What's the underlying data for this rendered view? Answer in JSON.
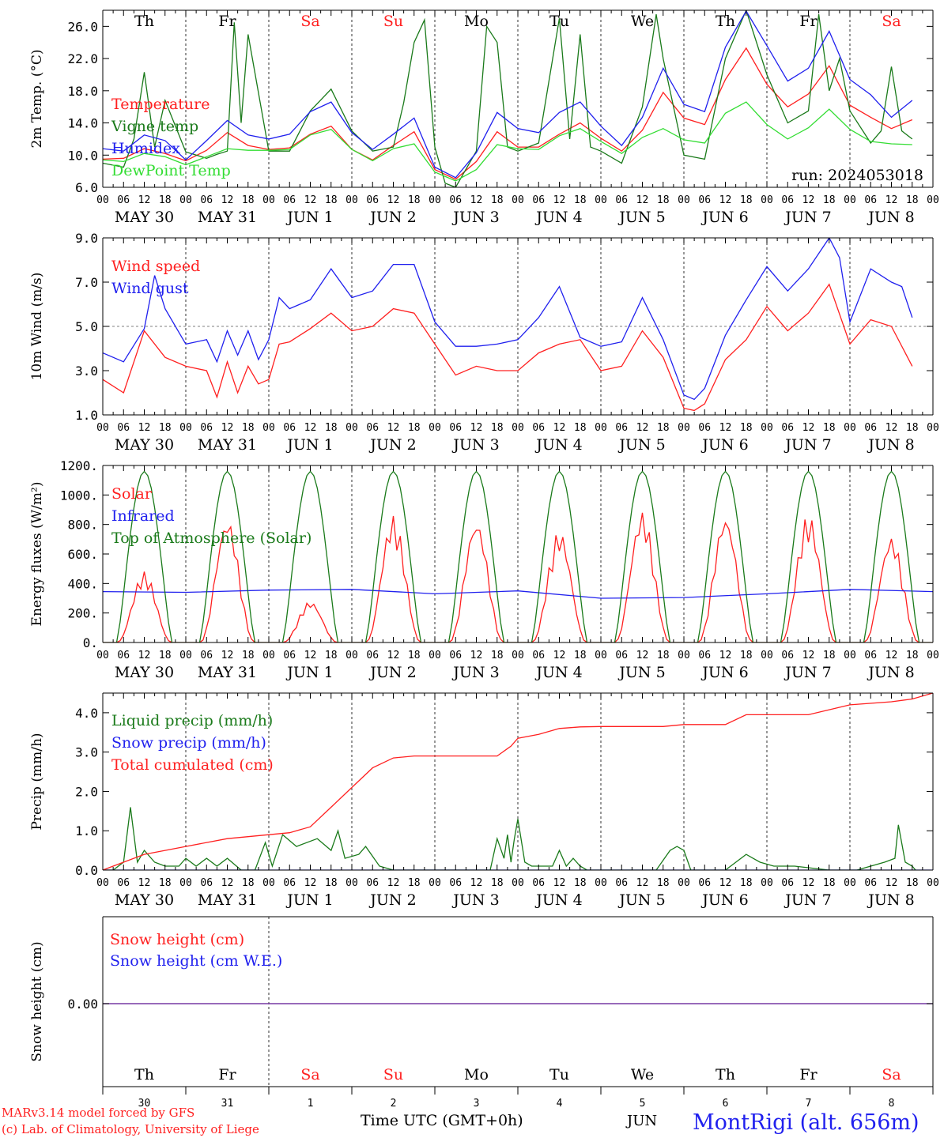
{
  "colors": {
    "red": "#ff2020",
    "green": "#1a7a1a",
    "blue": "#2020ee",
    "lightgreen": "#33dd33",
    "purple": "#7030a0"
  },
  "days": [
    {
      "name": "Th",
      "weekend": false
    },
    {
      "name": "Fr",
      "weekend": false
    },
    {
      "name": "Sa",
      "weekend": true
    },
    {
      "name": "Su",
      "weekend": true
    },
    {
      "name": "Mo",
      "weekend": false
    },
    {
      "name": "Tu",
      "weekend": false
    },
    {
      "name": "We",
      "weekend": false
    },
    {
      "name": "Th",
      "weekend": false
    },
    {
      "name": "Fr",
      "weekend": false
    },
    {
      "name": "Sa",
      "weekend": true
    }
  ],
  "date_labels": [
    "MAY 30",
    "MAY 31",
    "JUN  1",
    "JUN  2",
    "JUN  3",
    "JUN  4",
    "JUN  5",
    "JUN  6",
    "JUN  7",
    "JUN  8"
  ],
  "hour_labels": [
    "00",
    "06",
    "12",
    "18"
  ],
  "bottom_day_numbers": [
    "30",
    "31",
    "1",
    "2",
    "3",
    "4",
    "5",
    "6",
    "7",
    "8"
  ],
  "footer": {
    "model": "MARv3.14 model forced by GFS",
    "lab": "(c) Lab. of Climatology, University of Liege",
    "xlabel": "Time UTC (GMT+0h)",
    "month": "JUN",
    "station": "MontRigi (alt. 656m)"
  },
  "chart_data": [
    {
      "id": "temp",
      "type": "line",
      "ylabel": "2m Temp. (°C)",
      "ylim": [
        6,
        28
      ],
      "yticks": [
        "6.0",
        "10.0",
        "14.0",
        "18.0",
        "22.0",
        "26.0"
      ],
      "ytick_values": [
        6,
        10,
        14,
        18,
        22,
        26
      ],
      "run": "run: 2024053018",
      "x_unit": "hours since MAY 30 00 UTC",
      "series": [
        {
          "name": "Temperature",
          "color": "red",
          "x": [
            0,
            6,
            12,
            18,
            24,
            30,
            36,
            42,
            48,
            54,
            60,
            66,
            72,
            78,
            84,
            90,
            96,
            102,
            108,
            114,
            120,
            126,
            132,
            138,
            144,
            150,
            156,
            162,
            168,
            174,
            180,
            186,
            192,
            198,
            204,
            210,
            216,
            222,
            228,
            234
          ],
          "y": [
            9.5,
            9.6,
            10.8,
            10.2,
            9.3,
            10.6,
            12.8,
            11.2,
            10.7,
            10.9,
            12.6,
            13.6,
            10.7,
            9.4,
            11.2,
            12.9,
            8.2,
            7.0,
            9.2,
            12.9,
            11.0,
            11.0,
            12.6,
            14.0,
            12.1,
            10.5,
            13.1,
            17.8,
            14.6,
            13.8,
            19.4,
            23.3,
            18.8,
            16.0,
            17.6,
            21.1,
            16.2,
            14.7,
            13.3,
            14.4
          ]
        },
        {
          "name": "Vigne temp",
          "color": "green",
          "x": [
            0,
            6,
            9,
            12,
            15,
            18,
            24,
            30,
            33,
            36,
            38,
            40,
            42,
            48,
            54,
            60,
            66,
            72,
            78,
            84,
            87,
            90,
            93,
            96,
            99,
            102,
            108,
            111,
            114,
            117,
            120,
            126,
            132,
            135,
            138,
            141,
            144,
            150,
            156,
            160,
            162,
            165,
            168,
            174,
            180,
            186,
            192,
            198,
            204,
            207,
            210,
            213,
            216,
            222,
            225,
            228,
            231,
            234
          ],
          "y": [
            9.0,
            8.5,
            12.0,
            20.3,
            11.0,
            16.8,
            10.4,
            9.6,
            10.1,
            10.5,
            26.5,
            14.0,
            25.0,
            10.5,
            10.5,
            15.5,
            18.2,
            13.0,
            10.5,
            11.0,
            16.5,
            24.0,
            26.8,
            11.0,
            6.5,
            6.0,
            10.5,
            26.0,
            24.0,
            11.0,
            10.5,
            11.5,
            27.0,
            12.0,
            25.0,
            11.0,
            10.5,
            9.0,
            16.0,
            27.5,
            22.0,
            16.0,
            10.0,
            9.5,
            22.0,
            28.0,
            20.0,
            14.0,
            15.5,
            27.5,
            18.0,
            22.0,
            15.5,
            11.5,
            13.0,
            21.0,
            13.0,
            12.0
          ]
        },
        {
          "name": "Humidex",
          "color": "blue",
          "x": [
            0,
            6,
            12,
            18,
            24,
            30,
            36,
            42,
            48,
            54,
            60,
            66,
            72,
            78,
            84,
            90,
            96,
            102,
            108,
            114,
            120,
            126,
            132,
            138,
            144,
            150,
            156,
            162,
            168,
            174,
            180,
            186,
            192,
            198,
            204,
            210,
            216,
            222,
            228,
            234
          ],
          "y": [
            10.8,
            10.5,
            12.5,
            11.8,
            9.4,
            11.8,
            14.3,
            12.5,
            12.0,
            12.6,
            15.4,
            16.6,
            12.8,
            10.7,
            12.6,
            14.6,
            8.5,
            7.2,
            10.3,
            15.3,
            13.3,
            12.8,
            15.3,
            16.6,
            13.6,
            11.2,
            14.7,
            20.8,
            16.3,
            15.4,
            23.4,
            27.9,
            23.6,
            19.2,
            20.8,
            25.4,
            19.4,
            17.5,
            14.7,
            16.8
          ]
        },
        {
          "name": "DewPoint Temp",
          "color": "lightgreen",
          "x": [
            0,
            6,
            12,
            18,
            24,
            30,
            36,
            42,
            48,
            54,
            60,
            66,
            72,
            78,
            84,
            90,
            96,
            102,
            108,
            114,
            120,
            126,
            132,
            138,
            144,
            150,
            156,
            162,
            168,
            174,
            180,
            186,
            192,
            198,
            204,
            210,
            216,
            222,
            228,
            234
          ],
          "y": [
            9.4,
            9.2,
            10.2,
            9.8,
            8.8,
            9.8,
            10.8,
            10.6,
            10.6,
            10.7,
            12.5,
            13.2,
            10.7,
            9.3,
            10.8,
            11.4,
            7.9,
            6.8,
            8.2,
            11.3,
            10.8,
            10.7,
            12.4,
            13.3,
            11.7,
            10.2,
            12.2,
            13.3,
            11.9,
            11.5,
            15.2,
            16.6,
            13.8,
            12.0,
            13.4,
            15.7,
            13.2,
            11.7,
            11.4,
            11.3
          ]
        }
      ]
    },
    {
      "id": "wind",
      "type": "line",
      "ylabel": "10m Wind (m/s)",
      "ylim": [
        1,
        9
      ],
      "yticks": [
        "1.0",
        "3.0",
        "5.0",
        "7.0",
        "9.0"
      ],
      "ytick_values": [
        1,
        3,
        5,
        7,
        9
      ],
      "reference_line": 5,
      "x_unit": "hours since MAY 30 00 UTC",
      "series": [
        {
          "name": "Wind speed",
          "color": "red",
          "x": [
            0,
            6,
            12,
            18,
            24,
            30,
            33,
            36,
            39,
            42,
            45,
            48,
            51,
            54,
            60,
            66,
            72,
            78,
            84,
            90,
            96,
            102,
            108,
            114,
            120,
            126,
            132,
            138,
            144,
            150,
            156,
            162,
            168,
            171,
            174,
            180,
            186,
            192,
            198,
            204,
            210,
            216,
            222,
            228,
            234
          ],
          "y": [
            2.6,
            2.0,
            4.8,
            3.6,
            3.2,
            3.0,
            1.8,
            3.4,
            2.0,
            3.2,
            2.4,
            2.6,
            4.2,
            4.3,
            4.9,
            5.6,
            4.8,
            5.0,
            5.8,
            5.6,
            4.2,
            2.8,
            3.2,
            3.0,
            3.0,
            3.8,
            4.2,
            4.4,
            3.0,
            3.2,
            4.8,
            3.6,
            1.3,
            1.2,
            1.5,
            3.5,
            4.4,
            5.9,
            4.8,
            5.6,
            6.9,
            4.2,
            5.3,
            5.0,
            3.2
          ]
        },
        {
          "name": "Wind gust",
          "color": "blue",
          "x": [
            0,
            6,
            12,
            15,
            18,
            24,
            30,
            33,
            36,
            39,
            42,
            45,
            48,
            51,
            54,
            60,
            66,
            72,
            78,
            84,
            90,
            96,
            102,
            108,
            114,
            120,
            126,
            132,
            138,
            144,
            150,
            156,
            162,
            168,
            171,
            174,
            180,
            186,
            192,
            198,
            204,
            210,
            213,
            216,
            222,
            228,
            231,
            234
          ],
          "y": [
            3.8,
            3.4,
            4.9,
            7.3,
            5.8,
            4.2,
            4.4,
            3.4,
            4.8,
            3.7,
            4.8,
            3.5,
            4.4,
            6.3,
            5.8,
            6.2,
            7.6,
            6.3,
            6.6,
            7.8,
            7.8,
            5.2,
            4.1,
            4.1,
            4.2,
            4.4,
            5.4,
            6.8,
            4.5,
            4.1,
            4.3,
            6.3,
            4.4,
            1.9,
            1.7,
            2.2,
            4.6,
            6.2,
            7.7,
            6.6,
            7.6,
            9.0,
            8.1,
            5.2,
            7.6,
            7.0,
            6.8,
            5.4
          ]
        }
      ]
    },
    {
      "id": "energy",
      "type": "line",
      "ylabel": "Energy fluxes (W/m²)",
      "ylim": [
        0,
        1200
      ],
      "yticks": [
        "0.",
        "200.",
        "400.",
        "600.",
        "800.",
        "1000.",
        "1200."
      ],
      "ytick_values": [
        0,
        200,
        400,
        600,
        800,
        1000,
        1200
      ],
      "x_unit": "hours since MAY 30 00 UTC",
      "daily_peak_hour": 12,
      "series": [
        {
          "name": "Solar",
          "color": "red",
          "daily_peaks": [
            480,
            840,
            280,
            860,
            830,
            760,
            890,
            860,
            870,
            720
          ]
        },
        {
          "name": "Infrared",
          "color": "blue",
          "x": [
            0,
            24,
            48,
            72,
            96,
            120,
            144,
            168,
            192,
            216,
            240
          ],
          "y": [
            345,
            340,
            355,
            360,
            330,
            350,
            300,
            305,
            330,
            360,
            345
          ]
        },
        {
          "name": "Top of Atmosphere (Solar)",
          "color": "green",
          "daily_peaks": [
            1160,
            1160,
            1160,
            1160,
            1160,
            1160,
            1160,
            1160,
            1160,
            1160
          ],
          "daylight_hours": [
            4,
            20
          ]
        }
      ]
    },
    {
      "id": "precip",
      "type": "line",
      "ylabel": "Precip (mm/h)",
      "ylim": [
        0,
        4.5
      ],
      "yticks": [
        "0.0",
        "1.0",
        "2.0",
        "3.0",
        "4.0"
      ],
      "ytick_values": [
        0,
        1,
        2,
        3,
        4
      ],
      "x_unit": "hours since MAY 30 00 UTC",
      "series": [
        {
          "name": "Liquid precip (mm/h)",
          "color": "green",
          "x": [
            0,
            3,
            6,
            8,
            10,
            12,
            15,
            18,
            22,
            24,
            27,
            30,
            33,
            36,
            40,
            44,
            47,
            49,
            52,
            56,
            62,
            66,
            68,
            70,
            74,
            76,
            80,
            84,
            88,
            96,
            112,
            114,
            116,
            117,
            118,
            119,
            120,
            122,
            124,
            130,
            132,
            134,
            136,
            138,
            140,
            144,
            160,
            164,
            166,
            168,
            170,
            180,
            186,
            188,
            190,
            194,
            200,
            210,
            218,
            222,
            226,
            229,
            230,
            232,
            234,
            235
          ],
          "y": [
            0.0,
            0.0,
            0.2,
            1.6,
            0.2,
            0.5,
            0.2,
            0.1,
            0.1,
            0.3,
            0.1,
            0.3,
            0.1,
            0.3,
            0.0,
            0.0,
            0.7,
            0.1,
            0.9,
            0.6,
            0.8,
            0.5,
            1.0,
            0.3,
            0.4,
            0.6,
            0.1,
            0.0,
            0.0,
            0.0,
            0.0,
            0.8,
            0.3,
            0.9,
            0.2,
            0.8,
            1.3,
            0.2,
            0.1,
            0.1,
            0.5,
            0.1,
            0.3,
            0.1,
            0.0,
            0.0,
            0.0,
            0.5,
            0.6,
            0.5,
            0.0,
            0.0,
            0.4,
            0.3,
            0.2,
            0.1,
            0.1,
            0.0,
            0.0,
            0.1,
            0.2,
            0.3,
            1.15,
            0.2,
            0.1,
            0.0
          ]
        },
        {
          "name": "Snow precip (mm/h)",
          "color": "blue",
          "x": [
            0,
            240
          ],
          "y": [
            0,
            0
          ]
        },
        {
          "name": "Total cumulated (cm)",
          "color": "red",
          "x": [
            0,
            6,
            12,
            24,
            36,
            48,
            54,
            60,
            66,
            72,
            78,
            84,
            90,
            96,
            106,
            114,
            118,
            120,
            126,
            132,
            138,
            144,
            162,
            168,
            180,
            186,
            204,
            216,
            228,
            234,
            240
          ],
          "y": [
            0.0,
            0.2,
            0.4,
            0.6,
            0.8,
            0.9,
            0.95,
            1.1,
            1.6,
            2.1,
            2.6,
            2.85,
            2.9,
            2.9,
            2.9,
            2.9,
            3.15,
            3.35,
            3.45,
            3.6,
            3.64,
            3.65,
            3.65,
            3.7,
            3.7,
            3.95,
            3.95,
            4.2,
            4.28,
            4.35,
            4.5
          ]
        }
      ]
    },
    {
      "id": "snow",
      "type": "line",
      "ylabel": "Snow height (cm)",
      "ytick_values": [
        0
      ],
      "yticks": [
        "0.00"
      ],
      "x_unit": "hours since MAY 30 00 UTC",
      "series": [
        {
          "name": "Snow height (cm)",
          "color": "red",
          "x": [
            0,
            240
          ],
          "y": [
            0,
            0
          ]
        },
        {
          "name": "Snow height (cm W.E.)",
          "color": "blue",
          "x": [
            0,
            240
          ],
          "y": [
            0,
            0
          ]
        }
      ]
    }
  ]
}
